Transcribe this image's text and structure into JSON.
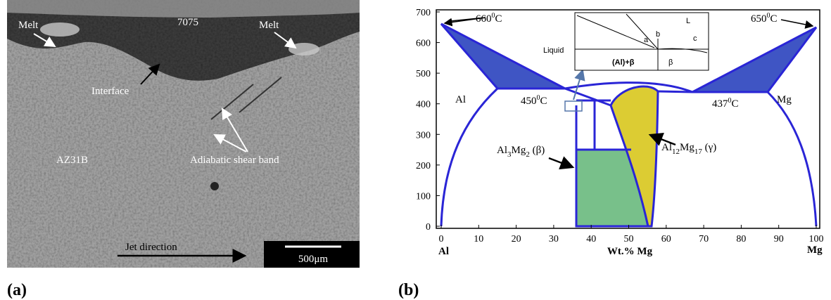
{
  "panel_a": {
    "label": "(a)",
    "annotations": {
      "melt_left": "Melt",
      "alloy_top": "7075",
      "melt_right": "Melt",
      "interface": "Interface",
      "alloy_bottom": "AZ31B",
      "shear_band": "Adiabatic shear band",
      "jet": "Jet direction",
      "scale_bar": "500μm"
    }
  },
  "panel_b": {
    "label": "(b)",
    "y_ticks": [
      0,
      100,
      200,
      300,
      400,
      500,
      600,
      700
    ],
    "x_ticks": [
      0,
      10,
      20,
      30,
      40,
      50,
      60,
      70,
      80,
      90,
      100
    ],
    "x_left": "Al",
    "x_title": "Wt.% Mg",
    "x_right": "Mg",
    "temp_al": [
      "660",
      "0",
      "C"
    ],
    "temp_mg": [
      "650",
      "0",
      "C"
    ],
    "temp_eut_left": [
      "450",
      "0",
      "C"
    ],
    "temp_eut_right": [
      "437",
      "0",
      "C"
    ],
    "phase_al": "Al",
    "phase_mg": "Mg",
    "beta": [
      "Al",
      "3",
      "Mg",
      "2",
      " (β)"
    ],
    "gamma": [
      "Al",
      "12",
      "Mg",
      "17",
      " (γ)"
    ],
    "inset": {
      "liquid_region": "L",
      "liquid": "Liquid",
      "two_phase": "(Al)+β",
      "beta": "β",
      "a": "a",
      "b": "b",
      "c": "c"
    }
  }
}
